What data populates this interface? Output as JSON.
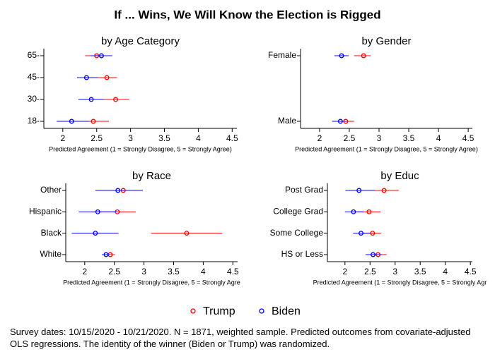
{
  "title": "If ... Wins, We Will Know the Election is Rigged",
  "legend": [
    {
      "name": "Trump",
      "color": "#ff0000"
    },
    {
      "name": "Biden",
      "color": "#0000ff"
    }
  ],
  "note": "Survey dates: 10/15/2020 - 10/21/2020. N = 1871, weighted sample. Predicted outcomes from covariate-adjusted OLS regressions. The identity of the winner (Biden or Trump) was randomized.",
  "chart_data": [
    {
      "type": "dot-whisker",
      "title": "by Age Category",
      "xlabel": "Predicted Agreement (1 = Strongly Disagree, 5 = Strongly Agree)",
      "categories": [
        "18-",
        "30-",
        "45-",
        "65-"
      ],
      "xlim": [
        1.72,
        4.57
      ],
      "xticks": [
        2,
        2.5,
        3,
        3.5,
        4,
        4.5
      ],
      "series": [
        {
          "values": [
            2.45,
            2.78,
            2.65,
            2.5
          ],
          "low": [
            2.26,
            2.59,
            2.5,
            2.33
          ],
          "high": [
            2.68,
            2.98,
            2.8,
            2.65
          ]
        },
        {
          "values": [
            2.13,
            2.42,
            2.35,
            2.57
          ],
          "low": [
            1.91,
            2.23,
            2.21,
            2.41
          ],
          "high": [
            2.38,
            2.6,
            2.51,
            2.73
          ]
        }
      ]
    },
    {
      "type": "dot-whisker",
      "title": "by Gender",
      "xlabel": "Predicted Agreement (1 = Strongly Disagree, 5 = Strongly Agree)",
      "categories": [
        "Male",
        "Female"
      ],
      "xlim": [
        1.68,
        4.57
      ],
      "xticks": [
        2,
        2.5,
        3,
        3.5,
        4,
        4.5
      ],
      "series": [
        {
          "values": [
            2.44,
            2.74
          ],
          "low": [
            2.31,
            2.58
          ],
          "high": [
            2.58,
            2.86
          ]
        },
        {
          "values": [
            2.35,
            2.37
          ],
          "low": [
            2.21,
            2.25
          ],
          "high": [
            2.45,
            2.49
          ]
        }
      ]
    },
    {
      "type": "dot-whisker",
      "title": "by Race",
      "xlabel": "Predicted Agreement (1 = Strongly Disagree, 5 = Strongly Agre",
      "categories": [
        "White",
        "Black",
        "Hispanic",
        "Other"
      ],
      "xlim": [
        1.68,
        4.58
      ],
      "xticks": [
        2,
        2.5,
        3,
        3.5,
        4,
        4.5
      ],
      "series": [
        {
          "values": [
            2.43,
            3.72,
            2.55,
            2.65
          ],
          "low": [
            2.34,
            3.12,
            2.22,
            2.33
          ],
          "high": [
            2.51,
            4.32,
            2.86,
            2.98
          ]
        },
        {
          "values": [
            2.36,
            2.18,
            2.22,
            2.56
          ],
          "low": [
            2.29,
            1.78,
            1.9,
            2.18
          ],
          "high": [
            2.43,
            2.57,
            2.54,
            2.98
          ]
        }
      ]
    },
    {
      "type": "dot-whisker",
      "title": "by Educ",
      "xlabel": "Predicted Agreement (1 = Strongly Disagree, 5 = Strongly Agr",
      "categories": [
        "HS or Less",
        "Some College",
        "College Grad",
        "Post Grad"
      ],
      "xlim": [
        1.65,
        4.54
      ],
      "xticks": [
        2,
        2.5,
        3,
        3.5,
        4,
        4.5
      ],
      "series": [
        {
          "values": [
            2.66,
            2.55,
            2.48,
            2.78
          ],
          "low": [
            2.52,
            2.35,
            2.24,
            2.42
          ],
          "high": [
            2.83,
            2.72,
            2.71,
            3.07
          ]
        },
        {
          "values": [
            2.56,
            2.32,
            2.17,
            2.28
          ],
          "low": [
            2.41,
            2.16,
            2.0,
            2.01
          ],
          "high": [
            2.73,
            2.51,
            2.37,
            2.59
          ]
        }
      ]
    }
  ]
}
